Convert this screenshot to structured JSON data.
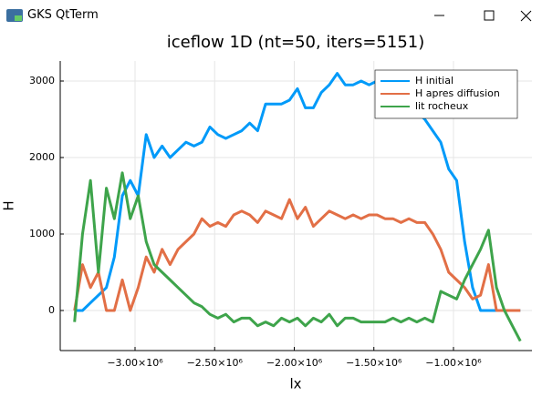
{
  "window": {
    "title": "GKS QtTerm"
  },
  "chart_data": {
    "type": "line",
    "title": "iceflow 1D (nt=50, iters=5151)",
    "x_label": "lx",
    "y_label": "H",
    "x": [
      -3380000,
      -3330000,
      -3280000,
      -3230000,
      -3180000,
      -3130000,
      -3080000,
      -3030000,
      -2980000,
      -2930000,
      -2880000,
      -2830000,
      -2780000,
      -2730000,
      -2680000,
      -2630000,
      -2580000,
      -2530000,
      -2480000,
      -2430000,
      -2380000,
      -2330000,
      -2280000,
      -2230000,
      -2180000,
      -2130000,
      -2080000,
      -2030000,
      -1980000,
      -1930000,
      -1880000,
      -1830000,
      -1780000,
      -1730000,
      -1680000,
      -1630000,
      -1580000,
      -1530000,
      -1480000,
      -1430000,
      -1380000,
      -1330000,
      -1280000,
      -1230000,
      -1180000,
      -1130000,
      -1080000,
      -1030000,
      -980000,
      -930000,
      -880000,
      -830000,
      -780000,
      -730000,
      -680000,
      -630000,
      -580000
    ],
    "series": [
      {
        "name": "H initial",
        "color": "#009af9",
        "values": [
          0,
          0,
          100,
          200,
          300,
          700,
          1500,
          1700,
          1500,
          2300,
          2000,
          2150,
          2000,
          2100,
          2200,
          2150,
          2200,
          2400,
          2300,
          2250,
          2300,
          2350,
          2450,
          2350,
          2700,
          2700,
          2700,
          2750,
          2900,
          2650,
          2650,
          2850,
          2950,
          3100,
          2950,
          2950,
          3000,
          2950,
          3000,
          2950,
          2900,
          2850,
          2750,
          2600,
          2500,
          2350,
          2200,
          1850,
          1700,
          900,
          300,
          0,
          0,
          0,
          0,
          0,
          0
        ]
      },
      {
        "name": "H apres diffusion",
        "color": "#e26f46",
        "values": [
          0,
          600,
          300,
          500,
          0,
          0,
          400,
          0,
          300,
          700,
          500,
          800,
          600,
          800,
          900,
          1000,
          1200,
          1100,
          1150,
          1100,
          1250,
          1300,
          1250,
          1150,
          1300,
          1250,
          1200,
          1450,
          1200,
          1350,
          1100,
          1200,
          1300,
          1250,
          1200,
          1250,
          1200,
          1250,
          1250,
          1200,
          1200,
          1150,
          1200,
          1150,
          1150,
          1000,
          800,
          500,
          400,
          300,
          150,
          200,
          600,
          0,
          0,
          0,
          0
        ]
      },
      {
        "name": "lit rocheux",
        "color": "#3ea44b",
        "values": [
          -150,
          1000,
          1700,
          500,
          1600,
          1200,
          1800,
          1200,
          1500,
          900,
          600,
          500,
          400,
          300,
          200,
          100,
          50,
          -50,
          -100,
          -50,
          -150,
          -100,
          -100,
          -200,
          -150,
          -200,
          -100,
          -150,
          -100,
          -200,
          -100,
          -150,
          -50,
          -200,
          -100,
          -100,
          -150,
          -150,
          -150,
          -150,
          -100,
          -150,
          -100,
          -150,
          -100,
          -150,
          250,
          200,
          150,
          400,
          600,
          800,
          1050,
          300,
          0,
          -200,
          -400
        ]
      }
    ],
    "xlim": [
      -3470000,
      -507000
    ],
    "ylim": [
      -524,
      3262
    ],
    "xticks": [
      {
        "value": -3000000,
        "label": "−3.00×10⁶"
      },
      {
        "value": -2500000,
        "label": "−2.50×10⁶"
      },
      {
        "value": -2000000,
        "label": "−2.00×10⁶"
      },
      {
        "value": -1500000,
        "label": "−1.50×10⁶"
      },
      {
        "value": -1000000,
        "label": "−1.00×10⁶"
      }
    ],
    "yticks": [
      0,
      1000,
      2000,
      3000
    ],
    "grid": true,
    "legend": "top-right"
  }
}
